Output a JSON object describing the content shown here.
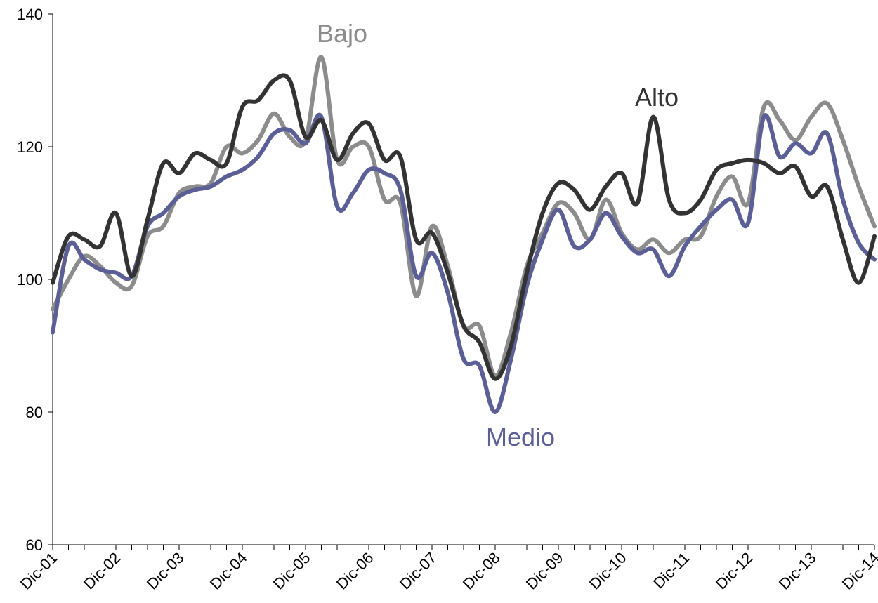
{
  "chart_data": {
    "type": "line",
    "categories": [
      "Dic-01",
      null,
      null,
      null,
      "Dic-02",
      null,
      null,
      null,
      "Dic-03",
      null,
      null,
      null,
      "Dic-04",
      null,
      null,
      null,
      "Dic-05",
      null,
      null,
      null,
      "Dic-06",
      null,
      null,
      null,
      "Dic-07",
      null,
      null,
      null,
      "Dic-08",
      null,
      null,
      null,
      "Dic-09",
      null,
      null,
      null,
      "Dic-10",
      null,
      null,
      null,
      "Dic-11",
      null,
      null,
      null,
      "Dic-12",
      null,
      null,
      null,
      "Dic-13",
      null,
      null,
      null,
      "Dic-14"
    ],
    "series": [
      {
        "name": "Bajo",
        "color": "#8c8c8c",
        "values": [
          95.5,
          100,
          103.5,
          102,
          99.5,
          99,
          106.5,
          108,
          113,
          114,
          114.5,
          120,
          119,
          121,
          125,
          121.5,
          121,
          133.5,
          118,
          120,
          120,
          112,
          111.5,
          97.5,
          108,
          102,
          93,
          93,
          85.5,
          92,
          102,
          107,
          111.5,
          110,
          106,
          112,
          107,
          104.5,
          106,
          104,
          106,
          106.5,
          112.5,
          115.5,
          111.5,
          126,
          124,
          121,
          124.5,
          126.5,
          121,
          114,
          108
        ]
      },
      {
        "name": "Medio",
        "color": "#5c5f96",
        "values": [
          92,
          105,
          103,
          101.5,
          101,
          100.5,
          108,
          110,
          112.5,
          113.5,
          114,
          115.5,
          116.5,
          118.5,
          122,
          122.5,
          120.5,
          124.5,
          111,
          113,
          116.5,
          116,
          113.5,
          100.5,
          104,
          98,
          88,
          87,
          80,
          88,
          99,
          106,
          110.5,
          105,
          106,
          110,
          106.5,
          104,
          104.5,
          100.5,
          105,
          108,
          110.5,
          112,
          108.5,
          124.5,
          118.5,
          120.5,
          119,
          122,
          112,
          105.5,
          103
        ]
      },
      {
        "name": "Alto",
        "color": "#333333",
        "values": [
          99.5,
          106.5,
          106,
          105,
          110,
          100.5,
          109,
          117.5,
          116,
          119,
          118,
          117.5,
          126,
          127,
          130,
          130,
          121.5,
          124,
          118,
          122,
          123.5,
          118,
          118.5,
          106,
          107,
          101,
          93,
          90.5,
          85,
          90,
          101,
          110,
          114.5,
          113.5,
          110.5,
          114,
          116,
          111.5,
          124.5,
          112,
          110,
          112,
          116.5,
          117.5,
          118,
          117.5,
          116,
          117,
          112.5,
          114,
          106,
          99.5,
          106.5
        ]
      }
    ],
    "ylim": [
      60,
      140
    ],
    "yticks": [
      60,
      80,
      100,
      120,
      140
    ]
  }
}
